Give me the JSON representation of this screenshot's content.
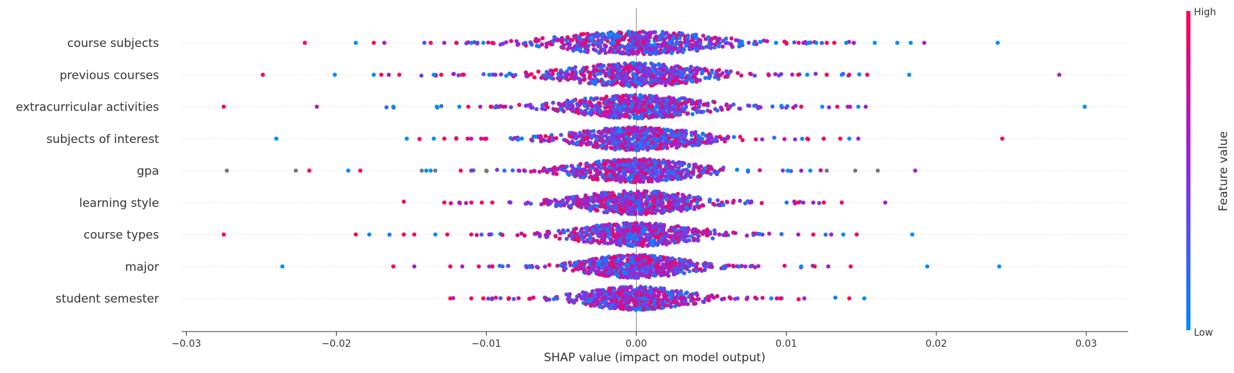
{
  "chart_data": {
    "type": "scatter",
    "subtype": "shap-beeswarm",
    "title": "",
    "xlabel": "SHAP value (impact on model output)",
    "ylabel": "",
    "xlim": [
      -0.0303,
      0.0328
    ],
    "xticks": [
      -0.03,
      -0.02,
      -0.01,
      0.0,
      0.01,
      0.02,
      0.03
    ],
    "xtick_labels": [
      "−0.03",
      "−0.02",
      "−0.01",
      "0.00",
      "0.01",
      "0.02",
      "0.03"
    ],
    "grid": false,
    "zero_line": true,
    "features": [
      {
        "name": "course subjects",
        "spread": 0.0052,
        "outliers": [
          {
            "x": -0.0221,
            "c": "high"
          },
          {
            "x": -0.0187,
            "c": "low"
          },
          {
            "x": -0.0175,
            "c": "high"
          },
          {
            "x": -0.0168,
            "c": "mid"
          },
          {
            "x": -0.0137,
            "c": "high"
          },
          {
            "x": -0.0128,
            "c": "mid"
          },
          {
            "x": -0.012,
            "c": "high"
          },
          {
            "x": -0.011,
            "c": "low"
          },
          {
            "x": -0.0102,
            "c": "low"
          },
          {
            "x": -0.0096,
            "c": "high"
          },
          {
            "x": 0.01,
            "c": "high"
          },
          {
            "x": 0.0115,
            "c": "low"
          },
          {
            "x": 0.012,
            "c": "low"
          },
          {
            "x": 0.0127,
            "c": "high"
          },
          {
            "x": 0.0132,
            "c": "high"
          },
          {
            "x": 0.014,
            "c": "low"
          },
          {
            "x": 0.0145,
            "c": "mid"
          },
          {
            "x": 0.0159,
            "c": "low"
          },
          {
            "x": 0.0174,
            "c": "low"
          },
          {
            "x": 0.0183,
            "c": "low"
          },
          {
            "x": 0.0192,
            "c": "mid"
          },
          {
            "x": 0.0241,
            "c": "low"
          }
        ]
      },
      {
        "name": "previous courses",
        "spread": 0.0048,
        "outliers": [
          {
            "x": -0.0249,
            "c": "high"
          },
          {
            "x": -0.0201,
            "c": "low"
          },
          {
            "x": -0.0175,
            "c": "low"
          },
          {
            "x": -0.017,
            "c": "high"
          },
          {
            "x": -0.0165,
            "c": "mid"
          },
          {
            "x": -0.0158,
            "c": "high"
          },
          {
            "x": -0.0135,
            "c": "low"
          },
          {
            "x": -0.013,
            "c": "high"
          },
          {
            "x": -0.0116,
            "c": "high"
          },
          {
            "x": -0.0098,
            "c": "low"
          },
          {
            "x": -0.0094,
            "c": "mid"
          },
          {
            "x": 0.0108,
            "c": "high"
          },
          {
            "x": 0.0114,
            "c": "low"
          },
          {
            "x": 0.0127,
            "c": "high"
          },
          {
            "x": 0.0137,
            "c": "low"
          },
          {
            "x": 0.0142,
            "c": "high"
          },
          {
            "x": 0.0154,
            "c": "high"
          },
          {
            "x": 0.0182,
            "c": "low"
          },
          {
            "x": 0.0282,
            "c": "mid"
          }
        ]
      },
      {
        "name": "extracurricular activities",
        "spread": 0.0045,
        "outliers": [
          {
            "x": -0.0275,
            "c": "high"
          },
          {
            "x": -0.0213,
            "c": "mid"
          },
          {
            "x": -0.0162,
            "c": "low"
          },
          {
            "x": -0.0133,
            "c": "low"
          },
          {
            "x": -0.0118,
            "c": "low"
          },
          {
            "x": -0.0112,
            "c": "high"
          },
          {
            "x": -0.0104,
            "c": "mid"
          },
          {
            "x": -0.0097,
            "c": "high"
          },
          {
            "x": 0.011,
            "c": "high"
          },
          {
            "x": 0.0124,
            "c": "low"
          },
          {
            "x": 0.0134,
            "c": "high"
          },
          {
            "x": 0.0141,
            "c": "mid"
          },
          {
            "x": 0.0148,
            "c": "low"
          },
          {
            "x": 0.0153,
            "c": "mid"
          },
          {
            "x": 0.0299,
            "c": "low"
          }
        ]
      },
      {
        "name": "subjects of interest",
        "spread": 0.0042,
        "outliers": [
          {
            "x": -0.024,
            "c": "low"
          },
          {
            "x": -0.0153,
            "c": "low"
          },
          {
            "x": -0.0135,
            "c": "low"
          },
          {
            "x": -0.0128,
            "c": "high"
          },
          {
            "x": -0.012,
            "c": "high"
          },
          {
            "x": -0.011,
            "c": "mid"
          },
          {
            "x": -0.01,
            "c": "high"
          },
          {
            "x": 0.0114,
            "c": "high"
          },
          {
            "x": 0.0125,
            "c": "high"
          },
          {
            "x": 0.0136,
            "c": "high"
          },
          {
            "x": 0.0142,
            "c": "low"
          },
          {
            "x": 0.0148,
            "c": "mid"
          },
          {
            "x": 0.0244,
            "c": "high"
          }
        ]
      },
      {
        "name": "gpa",
        "spread": 0.004,
        "outliers": [
          {
            "x": -0.0273,
            "c": "gray"
          },
          {
            "x": -0.0227,
            "c": "gray"
          },
          {
            "x": -0.0218,
            "c": "high"
          },
          {
            "x": -0.0192,
            "c": "low"
          },
          {
            "x": -0.0184,
            "c": "high"
          },
          {
            "x": -0.0143,
            "c": "gray"
          },
          {
            "x": -0.014,
            "c": "low"
          },
          {
            "x": -0.0137,
            "c": "low"
          },
          {
            "x": -0.0134,
            "c": "gray"
          },
          {
            "x": -0.0117,
            "c": "high"
          },
          {
            "x": -0.011,
            "c": "mid"
          },
          {
            "x": -0.01,
            "c": "gray"
          },
          {
            "x": 0.0101,
            "c": "low"
          },
          {
            "x": 0.011,
            "c": "mid"
          },
          {
            "x": 0.0116,
            "c": "low"
          },
          {
            "x": 0.0127,
            "c": "gray"
          },
          {
            "x": 0.0146,
            "c": "gray"
          },
          {
            "x": 0.0161,
            "c": "gray"
          },
          {
            "x": 0.0186,
            "c": "mid"
          }
        ]
      },
      {
        "name": "learning style",
        "spread": 0.004,
        "outliers": [
          {
            "x": -0.0128,
            "c": "high"
          },
          {
            "x": -0.0118,
            "c": "mid"
          },
          {
            "x": -0.011,
            "c": "high"
          },
          {
            "x": -0.0103,
            "c": "high"
          },
          {
            "x": -0.0096,
            "c": "high"
          },
          {
            "x": 0.0108,
            "c": "high"
          },
          {
            "x": 0.0118,
            "c": "mid"
          },
          {
            "x": 0.0125,
            "c": "high"
          },
          {
            "x": 0.0137,
            "c": "high"
          },
          {
            "x": 0.0166,
            "c": "mid"
          }
        ]
      },
      {
        "name": "course types",
        "spread": 0.004,
        "outliers": [
          {
            "x": -0.0275,
            "c": "high"
          },
          {
            "x": -0.0187,
            "c": "high"
          },
          {
            "x": -0.0178,
            "c": "low"
          },
          {
            "x": -0.0155,
            "c": "high"
          },
          {
            "x": -0.0148,
            "c": "high"
          },
          {
            "x": -0.0134,
            "c": "low"
          },
          {
            "x": -0.0126,
            "c": "high"
          },
          {
            "x": -0.011,
            "c": "high"
          },
          {
            "x": -0.0098,
            "c": "mid"
          },
          {
            "x": 0.0108,
            "c": "mid"
          },
          {
            "x": 0.0118,
            "c": "high"
          },
          {
            "x": 0.013,
            "c": "mid"
          },
          {
            "x": 0.0138,
            "c": "low"
          },
          {
            "x": 0.0147,
            "c": "high"
          },
          {
            "x": 0.0184,
            "c": "low"
          }
        ]
      },
      {
        "name": "major",
        "spread": 0.0035,
        "outliers": [
          {
            "x": -0.0236,
            "c": "low"
          },
          {
            "x": -0.0162,
            "c": "high"
          },
          {
            "x": -0.0148,
            "c": "mid"
          },
          {
            "x": -0.0124,
            "c": "high"
          },
          {
            "x": -0.0116,
            "c": "mid"
          },
          {
            "x": -0.0105,
            "c": "high"
          },
          {
            "x": -0.0096,
            "c": "high"
          },
          {
            "x": 0.011,
            "c": "low"
          },
          {
            "x": 0.0119,
            "c": "high"
          },
          {
            "x": 0.0128,
            "c": "mid"
          },
          {
            "x": 0.0143,
            "c": "high"
          },
          {
            "x": 0.0194,
            "c": "low"
          },
          {
            "x": 0.0242,
            "c": "low"
          }
        ]
      },
      {
        "name": "student semester",
        "spread": 0.0035,
        "outliers": [
          {
            "x": -0.0124,
            "c": "high"
          },
          {
            "x": -0.011,
            "c": "high"
          },
          {
            "x": -0.0102,
            "c": "high"
          },
          {
            "x": -0.0096,
            "c": "mid"
          },
          {
            "x": -0.0085,
            "c": "high"
          },
          {
            "x": 0.009,
            "c": "low"
          },
          {
            "x": 0.0096,
            "c": "high"
          },
          {
            "x": 0.0112,
            "c": "mid"
          },
          {
            "x": 0.0142,
            "c": "high"
          },
          {
            "x": 0.0152,
            "c": "low"
          }
        ]
      }
    ],
    "colorbar": {
      "label": "Feature value",
      "high_label": "High",
      "low_label": "Low",
      "high_color": "#ff0052",
      "mid_color": "#8a2be2",
      "low_color": "#008bfb"
    },
    "colors": {
      "high": "#ff0052",
      "mid": "#a020c8",
      "low": "#008bfb",
      "gray": "#777777",
      "axis": "#333333",
      "zero_line": "#888888",
      "row_guide": "#cccccc"
    }
  }
}
